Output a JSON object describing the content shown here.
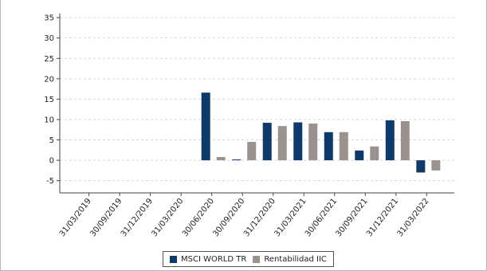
{
  "chart_data": {
    "type": "bar",
    "categories": [
      "31/03/2019",
      "30/09/2019",
      "31/12/2019",
      "31/03/2020",
      "30/06/2020",
      "30/09/2020",
      "31/12/2020",
      "31/03/2021",
      "30/06/2021",
      "30/09/2021",
      "31/12/2021",
      "31/03/2022"
    ],
    "series": [
      {
        "name": "MSCI WORLD TR",
        "color": "#0d3a6b",
        "values": [
          null,
          null,
          null,
          null,
          16.6,
          0.2,
          9.2,
          9.3,
          6.9,
          2.4,
          9.8,
          -3.0
        ]
      },
      {
        "name": "Rentabilidad IIC",
        "color": "#9b928d",
        "values": [
          null,
          null,
          null,
          null,
          0.8,
          4.5,
          8.4,
          9.0,
          6.9,
          3.4,
          9.6,
          -2.5
        ]
      }
    ],
    "yticks": [
      35,
      30,
      25,
      20,
      15,
      10,
      5,
      0,
      -5
    ],
    "ylim": [
      -8,
      36
    ],
    "grid": true,
    "legend": "bottom-center"
  }
}
